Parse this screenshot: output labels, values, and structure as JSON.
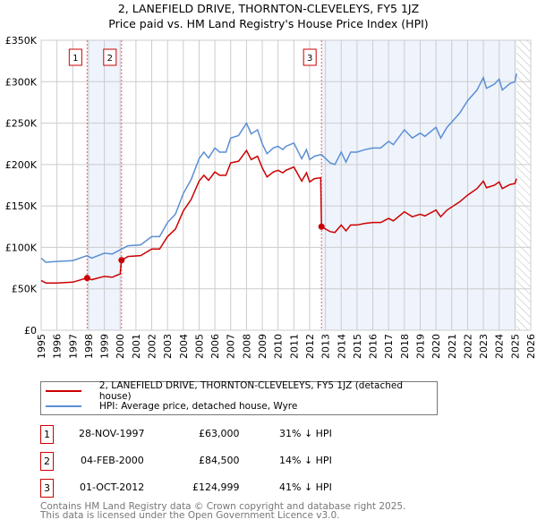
{
  "chart_data": {
    "type": "line",
    "title": "2, LANEFIELD DRIVE, THORNTON-CLEVELEYS, FY5 1JZ",
    "subtitle": "Price paid vs. HM Land Registry's House Price Index (HPI)",
    "xlim": [
      1995,
      2026
    ],
    "ylim": [
      0,
      350000
    ],
    "x_ticks": [
      "1995",
      "1996",
      "1997",
      "1998",
      "1999",
      "2000",
      "2001",
      "2002",
      "2003",
      "2004",
      "2005",
      "2006",
      "2007",
      "2008",
      "2009",
      "2010",
      "2011",
      "2012",
      "2013",
      "2014",
      "2015",
      "2016",
      "2017",
      "2018",
      "2019",
      "2020",
      "2021",
      "2022",
      "2023",
      "2024",
      "2025",
      "2026"
    ],
    "y_ticks": [
      {
        "v": 0,
        "label": "£0"
      },
      {
        "v": 50000,
        "label": "£50K"
      },
      {
        "v": 100000,
        "label": "£100K"
      },
      {
        "v": 150000,
        "label": "£150K"
      },
      {
        "v": 200000,
        "label": "£200K"
      },
      {
        "v": 250000,
        "label": "£250K"
      },
      {
        "v": 300000,
        "label": "£300K"
      },
      {
        "v": 350000,
        "label": "£350K"
      }
    ],
    "grid": true,
    "x": [
      1995,
      1995.3,
      1996,
      1997,
      1997.9,
      1998.2,
      1999,
      1999.5,
      2000,
      2000.09,
      2000.5,
      2001.3,
      2002,
      2002.5,
      2003,
      2003.5,
      2004,
      2004.5,
      2005,
      2005.3,
      2005.6,
      2006,
      2006.3,
      2006.7,
      2007,
      2007.5,
      2008,
      2008.3,
      2008.7,
      2009,
      2009.3,
      2009.7,
      2010,
      2010.3,
      2010.5,
      2011,
      2011.5,
      2011.8,
      2012,
      2012.3,
      2012.7,
      2012.75,
      2013.3,
      2013.6,
      2014,
      2014.3,
      2014.6,
      2015,
      2015.5,
      2016,
      2016.5,
      2017,
      2017.3,
      2018,
      2018.5,
      2019,
      2019.3,
      2020,
      2020.3,
      2020.7,
      2021.5,
      2022,
      2022.6,
      2023,
      2023.2,
      2023.7,
      2024,
      2024.2,
      2024.7,
      2025,
      2025.1
    ],
    "series": [
      {
        "name": "2, LANEFIELD DRIVE, THORNTON-CLEVELEYS, FY5 1JZ (detached house)",
        "color": "#cc0000",
        "values": [
          60,
          57,
          57,
          58,
          63,
          61,
          65,
          64,
          68,
          84.5,
          89,
          90,
          98,
          98,
          113,
          122,
          144,
          158,
          180,
          187,
          181,
          191,
          187,
          187,
          202,
          204,
          217,
          206,
          210,
          196,
          185,
          191,
          193,
          190,
          193,
          197,
          180,
          190,
          179,
          183,
          184,
          125,
          119,
          118,
          127,
          120,
          127,
          127,
          129,
          130,
          130,
          135,
          132,
          143,
          137,
          140,
          138,
          145,
          137,
          145,
          155,
          163,
          171,
          180,
          172,
          175,
          179,
          171,
          176,
          177,
          183
        ]
      },
      {
        "name": "HPI: Average price, detached house, Wyre",
        "color": "#5b8fd4",
        "values": [
          87,
          82,
          83,
          84,
          90,
          87,
          93,
          92,
          97,
          98,
          102,
          103,
          113,
          113,
          130,
          140,
          165,
          182,
          207,
          215,
          208,
          220,
          215,
          215,
          232,
          235,
          250,
          237,
          242,
          225,
          213,
          220,
          222,
          218,
          222,
          226,
          207,
          218,
          206,
          210,
          212,
          212,
          202,
          200,
          215,
          203,
          215,
          215,
          218,
          220,
          220,
          228,
          224,
          242,
          232,
          238,
          234,
          245,
          232,
          245,
          262,
          277,
          290,
          305,
          292,
          297,
          303,
          290,
          298,
          300,
          310
        ]
      }
    ],
    "value_unit": "thousands GBP",
    "sales": [
      {
        "id": "1",
        "x": 1997.91,
        "value": 63000,
        "date": "28-NOV-1997",
        "price": "£63,000",
        "hpi": "31% ↓ HPI"
      },
      {
        "id": "2",
        "x": 2000.09,
        "value": 84500,
        "date": "04-FEB-2000",
        "price": "£84,500",
        "hpi": "14% ↓ HPI"
      },
      {
        "id": "3",
        "x": 2012.75,
        "value": 124999,
        "date": "01-OCT-2012",
        "price": "£124,999",
        "hpi": "41% ↓ HPI"
      }
    ],
    "shaded_ranges": [
      [
        1997.91,
        2000.09
      ],
      [
        2012.75,
        2025.1
      ]
    ],
    "hatched_range": [
      2025.1,
      2026
    ],
    "legend_placement": "below"
  },
  "footer": [
    "Contains HM Land Registry data © Crown copyright and database right 2025.",
    "This data is licensed under the Open Government Licence v3.0."
  ]
}
